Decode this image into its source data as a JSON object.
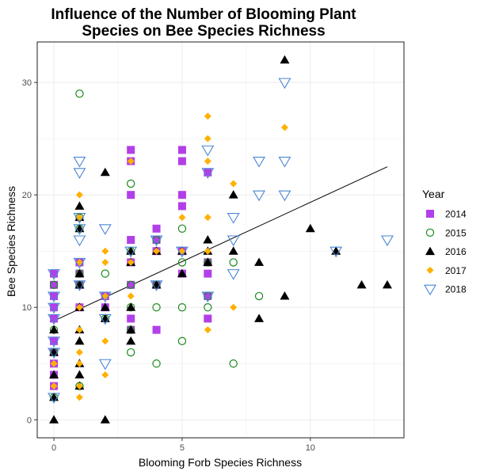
{
  "chart_data": {
    "type": "scatter",
    "title_line1": "Influence of the Number of Blooming Plant",
    "title_line2": "Species on Bee Species Richness",
    "xlabel": "Blooming Forb Species Richness",
    "ylabel": "Bee Species Richness",
    "xlim": [
      -0.65,
      13.65
    ],
    "ylim": [
      -1.6,
      33.6
    ],
    "x_ticks": [
      0,
      5,
      10
    ],
    "y_ticks": [
      0,
      10,
      20,
      30
    ],
    "grid": true,
    "legend": {
      "title": "Year",
      "position": "right"
    },
    "trend_line": {
      "x": [
        0,
        13
      ],
      "y": [
        8.8,
        22.5
      ]
    },
    "series": [
      {
        "name": "2014",
        "marker": "square",
        "color": "#b23fe8",
        "points": [
          [
            0,
            13
          ],
          [
            0,
            12
          ],
          [
            0,
            11
          ],
          [
            0,
            10
          ],
          [
            0,
            9
          ],
          [
            0,
            7
          ],
          [
            0,
            6
          ],
          [
            0,
            5
          ],
          [
            0,
            4
          ],
          [
            0,
            3
          ],
          [
            1,
            14
          ],
          [
            1,
            13
          ],
          [
            1,
            12
          ],
          [
            1,
            10
          ],
          [
            2,
            11
          ],
          [
            2,
            10
          ],
          [
            3,
            24
          ],
          [
            3,
            23
          ],
          [
            3,
            20
          ],
          [
            3,
            16
          ],
          [
            3,
            14
          ],
          [
            3,
            12
          ],
          [
            3,
            9
          ],
          [
            3,
            8
          ],
          [
            4,
            17
          ],
          [
            4,
            16
          ],
          [
            4,
            15
          ],
          [
            4,
            12
          ],
          [
            4,
            8
          ],
          [
            5,
            24
          ],
          [
            5,
            23
          ],
          [
            5,
            20
          ],
          [
            5,
            19
          ],
          [
            5,
            15
          ],
          [
            5,
            13
          ],
          [
            6,
            22
          ],
          [
            6,
            14
          ],
          [
            6,
            13
          ],
          [
            6,
            11
          ],
          [
            6,
            9
          ]
        ]
      },
      {
        "name": "2015",
        "marker": "circle",
        "color": "#1a8a1a",
        "points": [
          [
            0,
            12
          ],
          [
            0,
            8
          ],
          [
            0,
            6
          ],
          [
            0,
            2
          ],
          [
            1,
            29
          ],
          [
            1,
            18
          ],
          [
            1,
            17
          ],
          [
            1,
            13
          ],
          [
            1,
            12
          ],
          [
            1,
            3
          ],
          [
            2,
            13
          ],
          [
            2,
            9
          ],
          [
            3,
            21
          ],
          [
            3,
            15
          ],
          [
            3,
            12
          ],
          [
            3,
            10
          ],
          [
            3,
            8
          ],
          [
            3,
            6
          ],
          [
            4,
            16
          ],
          [
            4,
            12
          ],
          [
            4,
            10
          ],
          [
            4,
            5
          ],
          [
            5,
            17
          ],
          [
            5,
            14
          ],
          [
            5,
            10
          ],
          [
            5,
            7
          ],
          [
            6,
            14
          ],
          [
            6,
            11
          ],
          [
            6,
            10
          ],
          [
            7,
            14
          ],
          [
            7,
            5
          ],
          [
            8,
            11
          ]
        ]
      },
      {
        "name": "2016",
        "marker": "triangle",
        "color": "#000000",
        "points": [
          [
            0,
            8
          ],
          [
            0,
            6
          ],
          [
            0,
            4
          ],
          [
            0,
            2
          ],
          [
            0,
            0
          ],
          [
            1,
            19
          ],
          [
            1,
            18
          ],
          [
            1,
            17
          ],
          [
            1,
            13
          ],
          [
            1,
            12
          ],
          [
            1,
            10
          ],
          [
            1,
            8
          ],
          [
            1,
            7
          ],
          [
            1,
            5
          ],
          [
            1,
            4
          ],
          [
            1,
            3
          ],
          [
            2,
            22
          ],
          [
            2,
            10
          ],
          [
            2,
            9
          ],
          [
            2,
            0
          ],
          [
            3,
            15
          ],
          [
            3,
            14
          ],
          [
            3,
            10
          ],
          [
            3,
            8
          ],
          [
            3,
            7
          ],
          [
            4,
            15
          ],
          [
            4,
            12
          ],
          [
            5,
            15
          ],
          [
            5,
            13
          ],
          [
            6,
            16
          ],
          [
            6,
            15
          ],
          [
            6,
            14
          ],
          [
            7,
            20
          ],
          [
            7,
            15
          ],
          [
            8,
            14
          ],
          [
            8,
            9
          ],
          [
            9,
            32
          ],
          [
            9,
            11
          ],
          [
            10,
            17
          ],
          [
            11,
            15
          ],
          [
            12,
            12
          ],
          [
            13,
            12
          ]
        ]
      },
      {
        "name": "2017",
        "marker": "diamond",
        "color": "#ffb000",
        "points": [
          [
            0,
            5
          ],
          [
            0,
            3
          ],
          [
            1,
            20
          ],
          [
            1,
            18
          ],
          [
            1,
            14
          ],
          [
            1,
            10
          ],
          [
            1,
            8
          ],
          [
            1,
            6
          ],
          [
            1,
            5
          ],
          [
            1,
            3
          ],
          [
            1,
            2
          ],
          [
            2,
            15
          ],
          [
            2,
            14
          ],
          [
            2,
            11
          ],
          [
            2,
            7
          ],
          [
            2,
            4
          ],
          [
            3,
            23
          ],
          [
            3,
            14
          ],
          [
            3,
            11
          ],
          [
            4,
            15
          ],
          [
            5,
            18
          ],
          [
            5,
            15
          ],
          [
            6,
            27
          ],
          [
            6,
            25
          ],
          [
            6,
            23
          ],
          [
            6,
            18
          ],
          [
            6,
            15
          ],
          [
            6,
            8
          ],
          [
            7,
            21
          ],
          [
            7,
            10
          ],
          [
            9,
            26
          ]
        ]
      },
      {
        "name": "2018",
        "marker": "triangle-down",
        "color": "#4a86d4",
        "points": [
          [
            0,
            13
          ],
          [
            0,
            11
          ],
          [
            0,
            10
          ],
          [
            0,
            9
          ],
          [
            0,
            7
          ],
          [
            0,
            6
          ],
          [
            0,
            2
          ],
          [
            1,
            23
          ],
          [
            1,
            22
          ],
          [
            1,
            18
          ],
          [
            1,
            17
          ],
          [
            1,
            16
          ],
          [
            1,
            14
          ],
          [
            1,
            12
          ],
          [
            2,
            17
          ],
          [
            2,
            11
          ],
          [
            2,
            9
          ],
          [
            2,
            5
          ],
          [
            3,
            15
          ],
          [
            4,
            16
          ],
          [
            4,
            12
          ],
          [
            5,
            15
          ],
          [
            6,
            24
          ],
          [
            6,
            22
          ],
          [
            6,
            11
          ],
          [
            7,
            18
          ],
          [
            7,
            16
          ],
          [
            7,
            13
          ],
          [
            8,
            23
          ],
          [
            8,
            20
          ],
          [
            9,
            30
          ],
          [
            9,
            23
          ],
          [
            9,
            20
          ],
          [
            11,
            15
          ],
          [
            13,
            16
          ]
        ]
      }
    ]
  }
}
